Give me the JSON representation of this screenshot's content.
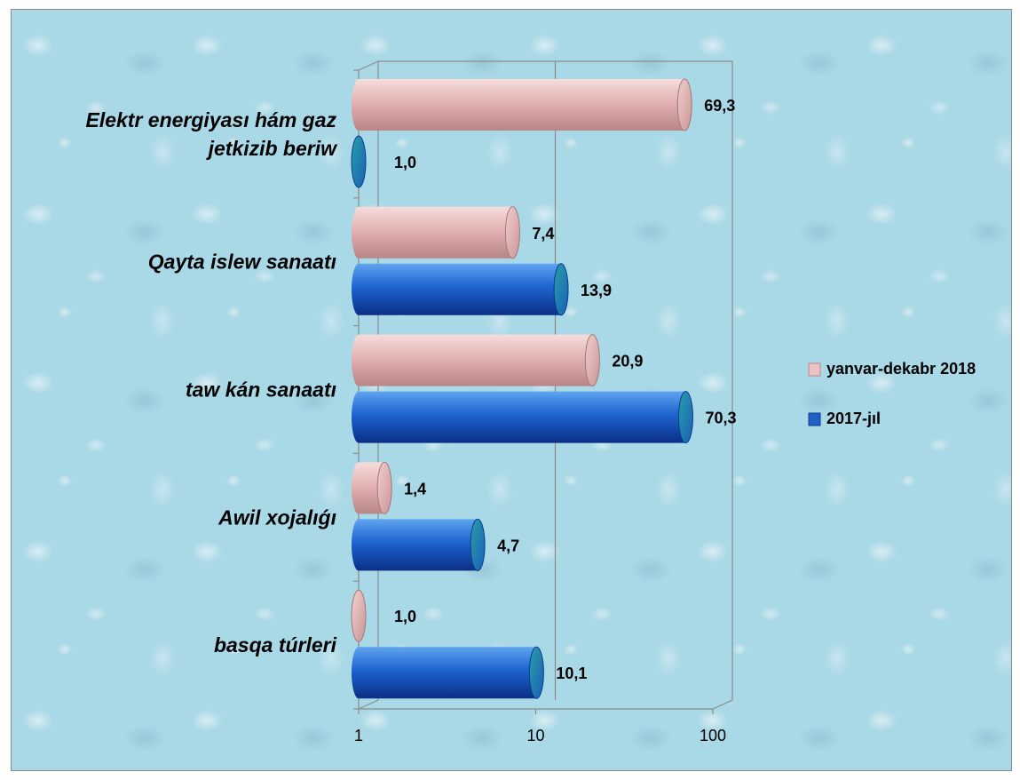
{
  "chart_data": {
    "type": "bar",
    "orientation": "horizontal",
    "style": "3d-cylinder",
    "x_scale": "log",
    "xlim": [
      1,
      100
    ],
    "x_ticks": [
      "1",
      "10",
      "100"
    ],
    "categories": [
      "Elektr energiyası hám gaz jetkizib beriw",
      "Qayta islew sanaatı",
      "taw kán sanaatı",
      "Awil xojalıǵı",
      "basqa túrleri"
    ],
    "series": [
      {
        "name": "yanvar-dekabr 2018",
        "color": "#e7b9b9",
        "values": [
          69.3,
          7.4,
          20.9,
          1.4,
          1.0
        ],
        "labels": [
          "69,3",
          "7,4",
          "20,9",
          "1,4",
          "1,0"
        ]
      },
      {
        "name": "2017-jıl",
        "color": "#1f5fc6",
        "values": [
          1.0,
          13.9,
          70.3,
          4.7,
          10.1
        ],
        "labels": [
          "1,0",
          "13,9",
          "70,3",
          "4,7",
          "10,1"
        ]
      }
    ],
    "legend_position": "right",
    "grid": "vertical-major",
    "background": "water-drops-texture"
  }
}
